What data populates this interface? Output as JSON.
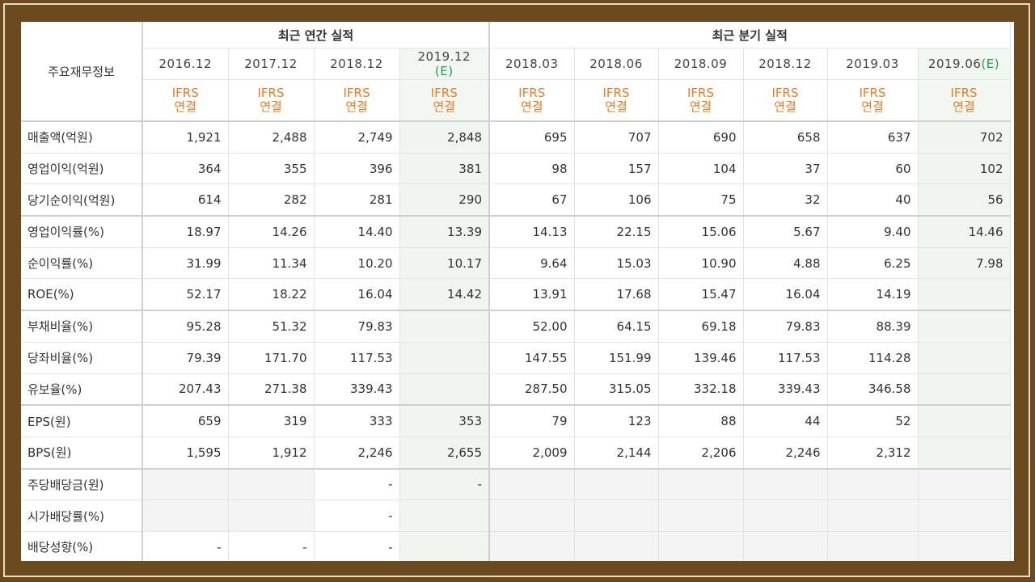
{
  "table": {
    "row_header": "주요재무정보",
    "groups": [
      {
        "label": "최근 연간 실적"
      },
      {
        "label": "최근 분기 실적"
      }
    ],
    "periods": [
      {
        "label": "2016.12",
        "est": ""
      },
      {
        "label": "2017.12",
        "est": ""
      },
      {
        "label": "2018.12",
        "est": ""
      },
      {
        "label": "2019.12",
        "est": "(E)"
      },
      {
        "label": "2018.03",
        "est": ""
      },
      {
        "label": "2018.06",
        "est": ""
      },
      {
        "label": "2018.09",
        "est": ""
      },
      {
        "label": "2018.12",
        "est": ""
      },
      {
        "label": "2019.03",
        "est": ""
      },
      {
        "label": "2019.06",
        "est": "(E)"
      }
    ],
    "ifrs_line1": "IFRS",
    "ifrs_line2": "연결",
    "rows": [
      {
        "label": "매출액(억원)",
        "values": [
          "1,921",
          "2,488",
          "2,749",
          "2,848",
          "695",
          "707",
          "690",
          "658",
          "637",
          "702"
        ]
      },
      {
        "label": "영업이익(억원)",
        "values": [
          "364",
          "355",
          "396",
          "381",
          "98",
          "157",
          "104",
          "37",
          "60",
          "102"
        ]
      },
      {
        "label": "당기순이익(억원)",
        "values": [
          "614",
          "282",
          "281",
          "290",
          "67",
          "106",
          "75",
          "32",
          "40",
          "56"
        ]
      },
      {
        "label": "영업이익률(%)",
        "values": [
          "18.97",
          "14.26",
          "14.40",
          "13.39",
          "14.13",
          "22.15",
          "15.06",
          "5.67",
          "9.40",
          "14.46"
        ]
      },
      {
        "label": "순이익률(%)",
        "values": [
          "31.99",
          "11.34",
          "10.20",
          "10.17",
          "9.64",
          "15.03",
          "10.90",
          "4.88",
          "6.25",
          "7.98"
        ]
      },
      {
        "label": "ROE(%)",
        "values": [
          "52.17",
          "18.22",
          "16.04",
          "14.42",
          "13.91",
          "17.68",
          "15.47",
          "16.04",
          "14.19",
          ""
        ]
      },
      {
        "label": "부채비율(%)",
        "values": [
          "95.28",
          "51.32",
          "79.83",
          "",
          "52.00",
          "64.15",
          "69.18",
          "79.83",
          "88.39",
          ""
        ]
      },
      {
        "label": "당좌비율(%)",
        "values": [
          "79.39",
          "171.70",
          "117.53",
          "",
          "147.55",
          "151.99",
          "139.46",
          "117.53",
          "114.28",
          ""
        ]
      },
      {
        "label": "유보율(%)",
        "values": [
          "207.43",
          "271.38",
          "339.43",
          "",
          "287.50",
          "315.05",
          "332.18",
          "339.43",
          "346.58",
          ""
        ]
      },
      {
        "label": "EPS(원)",
        "values": [
          "659",
          "319",
          "333",
          "353",
          "79",
          "123",
          "88",
          "44",
          "52",
          ""
        ]
      },
      {
        "label": "BPS(원)",
        "values": [
          "1,595",
          "1,912",
          "2,246",
          "2,655",
          "2,009",
          "2,144",
          "2,206",
          "2,246",
          "2,312",
          ""
        ]
      },
      {
        "label": "주당배당금(원)",
        "values": [
          "",
          "",
          "-",
          "-",
          "",
          "",
          "",
          "",
          "",
          ""
        ]
      },
      {
        "label": "시가배당률(%)",
        "values": [
          "",
          "",
          "-",
          "",
          "",
          "",
          "",
          "",
          "",
          ""
        ]
      },
      {
        "label": "배당성향(%)",
        "values": [
          "-",
          "-",
          "-",
          "",
          "",
          "",
          "",
          "",
          "",
          ""
        ]
      }
    ]
  }
}
